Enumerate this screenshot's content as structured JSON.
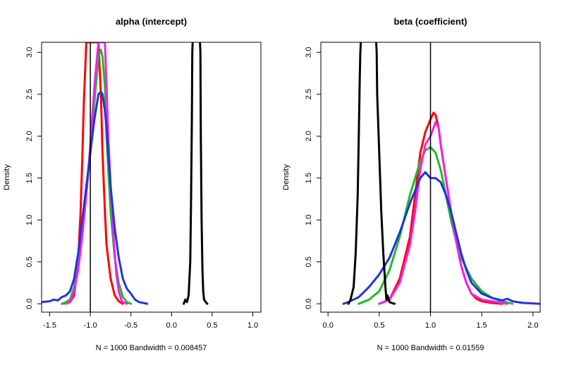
{
  "chart_data": [
    {
      "type": "line",
      "title": "alpha (intercept)",
      "xlabel": "N = 1000   Bandwidth = 0.008457",
      "ylabel": "Density",
      "xlim": [
        -1.6,
        1.1
      ],
      "ylim": [
        -0.1,
        3.12
      ],
      "xticks": [
        "-1.5",
        "-1.0",
        "-0.5",
        "0.0",
        "0.5",
        "1.0"
      ],
      "yticks": [
        "0.0",
        "0.5",
        "1.0",
        "1.5",
        "2.0",
        "2.5",
        "3.0"
      ],
      "reference_line_x": -1.0,
      "grid": false,
      "series": [
        {
          "color": "#ff0000",
          "x": [
            -1.35,
            -1.25,
            -1.2,
            -1.15,
            -1.12,
            -1.1,
            -1.08,
            -1.05,
            -1.02,
            -1.0,
            -0.95,
            -0.9,
            -0.87,
            -0.85,
            -0.82,
            -0.8,
            -0.75,
            -0.7,
            -0.65,
            -0.6
          ],
          "y": [
            0,
            0.02,
            0.1,
            0.5,
            1.1,
            1.7,
            2.4,
            3.12,
            3.12,
            3.12,
            3.12,
            3.12,
            2.5,
            1.8,
            1.1,
            0.7,
            0.3,
            0.1,
            0.03,
            0
          ]
        },
        {
          "color": "#22bb22",
          "x": [
            -1.35,
            -1.3,
            -1.25,
            -1.2,
            -1.15,
            -1.1,
            -1.05,
            -1.0,
            -0.95,
            -0.9,
            -0.87,
            -0.85,
            -0.82,
            -0.8,
            -0.78,
            -0.75,
            -0.7,
            -0.65,
            -0.6,
            -0.55,
            -0.5
          ],
          "y": [
            0,
            0.02,
            0.05,
            0.2,
            0.5,
            0.9,
            1.3,
            1.8,
            2.4,
            2.95,
            3.03,
            2.95,
            2.6,
            2.0,
            1.6,
            1.1,
            0.55,
            0.25,
            0.08,
            0.02,
            0
          ]
        },
        {
          "color": "#ee22ee",
          "x": [
            -1.3,
            -1.25,
            -1.2,
            -1.15,
            -1.1,
            -1.05,
            -1.0,
            -0.95,
            -0.9,
            -0.88,
            -0.85,
            -0.82,
            -0.8,
            -0.78,
            -0.75,
            -0.72,
            -0.7,
            -0.68,
            -0.65,
            -0.62,
            -0.6,
            -0.55
          ],
          "y": [
            0,
            0.02,
            0.15,
            0.4,
            0.8,
            1.3,
            1.9,
            2.6,
            3.12,
            3.12,
            3.12,
            3.12,
            2.6,
            2.0,
            1.4,
            0.9,
            0.6,
            0.35,
            0.15,
            0.05,
            0.02,
            0
          ]
        },
        {
          "color": "#2233dd",
          "x": [
            -1.6,
            -1.5,
            -1.45,
            -1.4,
            -1.35,
            -1.3,
            -1.25,
            -1.2,
            -1.15,
            -1.1,
            -1.05,
            -1.0,
            -0.95,
            -0.9,
            -0.87,
            -0.85,
            -0.82,
            -0.8,
            -0.78,
            -0.75,
            -0.7,
            -0.65,
            -0.6,
            -0.55,
            -0.5,
            -0.45,
            -0.4,
            -0.35,
            -0.3
          ],
          "y": [
            0.02,
            0.03,
            0.05,
            0.04,
            0.08,
            0.1,
            0.15,
            0.3,
            0.6,
            1.0,
            1.4,
            1.8,
            2.2,
            2.5,
            2.53,
            2.5,
            2.3,
            2.1,
            1.8,
            1.4,
            0.9,
            0.55,
            0.3,
            0.18,
            0.12,
            0.05,
            0.02,
            0.01,
            0
          ]
        },
        {
          "color": "#000000",
          "x": [
            0.15,
            0.17,
            0.19,
            0.21,
            0.23,
            0.24,
            0.25,
            0.255,
            0.26
          ],
          "y": [
            0,
            0.05,
            0.02,
            0.1,
            0.5,
            1.2,
            2.2,
            3.0,
            3.12
          ]
        },
        {
          "color": "#000000",
          "x": [
            0.35,
            0.355,
            0.36,
            0.37,
            0.38,
            0.39,
            0.4,
            0.42,
            0.44
          ],
          "y": [
            3.12,
            3.0,
            2.0,
            1.0,
            0.4,
            0.15,
            0.05,
            0.02,
            0
          ]
        }
      ]
    },
    {
      "type": "line",
      "title": "beta (coefficient)",
      "xlabel": "N = 1000   Bandwidth = 0.01559",
      "ylabel": "Density",
      "xlim": [
        -0.07,
        2.07
      ],
      "ylim": [
        -0.1,
        3.12
      ],
      "xticks": [
        "0.0",
        "0.5",
        "1.0",
        "1.5",
        "2.0"
      ],
      "yticks": [
        "0.0",
        "0.5",
        "1.0",
        "1.5",
        "2.0",
        "2.5",
        "3.0"
      ],
      "reference_line_x": 1.0,
      "grid": false,
      "series": [
        {
          "color": "#ff0000",
          "x": [
            0.5,
            0.6,
            0.7,
            0.8,
            0.85,
            0.9,
            0.95,
            1.0,
            1.03,
            1.05,
            1.08,
            1.1,
            1.15,
            1.2,
            1.25,
            1.3,
            1.35,
            1.4,
            1.45,
            1.5,
            1.55,
            1.6,
            1.7
          ],
          "y": [
            0,
            0.05,
            0.3,
            0.8,
            1.3,
            1.8,
            2.05,
            2.2,
            2.28,
            2.25,
            2.1,
            1.9,
            1.5,
            1.1,
            0.75,
            0.45,
            0.25,
            0.12,
            0.06,
            0.03,
            0.02,
            0.01,
            0
          ]
        },
        {
          "color": "#22bb22",
          "x": [
            0.3,
            0.4,
            0.5,
            0.6,
            0.7,
            0.8,
            0.9,
            0.95,
            1.0,
            1.05,
            1.1,
            1.15,
            1.2,
            1.25,
            1.3,
            1.4,
            1.5,
            1.6,
            1.7,
            1.8
          ],
          "y": [
            0,
            0.05,
            0.15,
            0.4,
            0.8,
            1.3,
            1.7,
            1.83,
            1.87,
            1.8,
            1.6,
            1.3,
            1.0,
            0.75,
            0.55,
            0.3,
            0.15,
            0.07,
            0.03,
            0
          ]
        },
        {
          "color": "#ee22ee",
          "x": [
            0.5,
            0.6,
            0.7,
            0.8,
            0.85,
            0.9,
            0.95,
            1.0,
            1.03,
            1.05,
            1.08,
            1.1,
            1.15,
            1.2,
            1.25,
            1.3,
            1.35,
            1.4,
            1.5,
            1.6,
            1.75
          ],
          "y": [
            0,
            0.05,
            0.25,
            0.7,
            1.1,
            1.6,
            1.9,
            2.0,
            2.1,
            2.17,
            2.1,
            1.9,
            1.5,
            1.1,
            0.75,
            0.45,
            0.25,
            0.12,
            0.05,
            0.03,
            0
          ]
        },
        {
          "color": "#2233dd",
          "x": [
            0.15,
            0.2,
            0.3,
            0.4,
            0.5,
            0.6,
            0.7,
            0.8,
            0.9,
            0.95,
            1.0,
            1.05,
            1.1,
            1.15,
            1.2,
            1.25,
            1.3,
            1.35,
            1.4,
            1.5,
            1.6,
            1.7,
            1.75,
            1.8,
            1.9,
            2.07
          ],
          "y": [
            0,
            0.02,
            0.08,
            0.2,
            0.35,
            0.55,
            0.85,
            1.2,
            1.5,
            1.57,
            1.5,
            1.5,
            1.45,
            1.3,
            1.1,
            0.85,
            0.6,
            0.4,
            0.25,
            0.12,
            0.07,
            0.04,
            0.06,
            0.03,
            0.01,
            0
          ]
        },
        {
          "color": "#000000",
          "x": [
            0.2,
            0.22,
            0.25,
            0.27,
            0.29,
            0.3,
            0.31,
            0.315,
            0.32
          ],
          "y": [
            0,
            0.05,
            0.2,
            0.6,
            1.3,
            2.0,
            2.7,
            3.0,
            3.12
          ]
        },
        {
          "color": "#000000",
          "x": [
            0.47,
            0.475,
            0.48,
            0.5,
            0.52,
            0.54,
            0.55,
            0.56,
            0.57,
            0.58,
            0.6,
            0.62,
            0.65
          ],
          "y": [
            3.12,
            3.0,
            2.5,
            1.8,
            1.1,
            0.6,
            0.4,
            0.2,
            0.05,
            0.1,
            0.02,
            0.01,
            0
          ]
        }
      ]
    }
  ]
}
